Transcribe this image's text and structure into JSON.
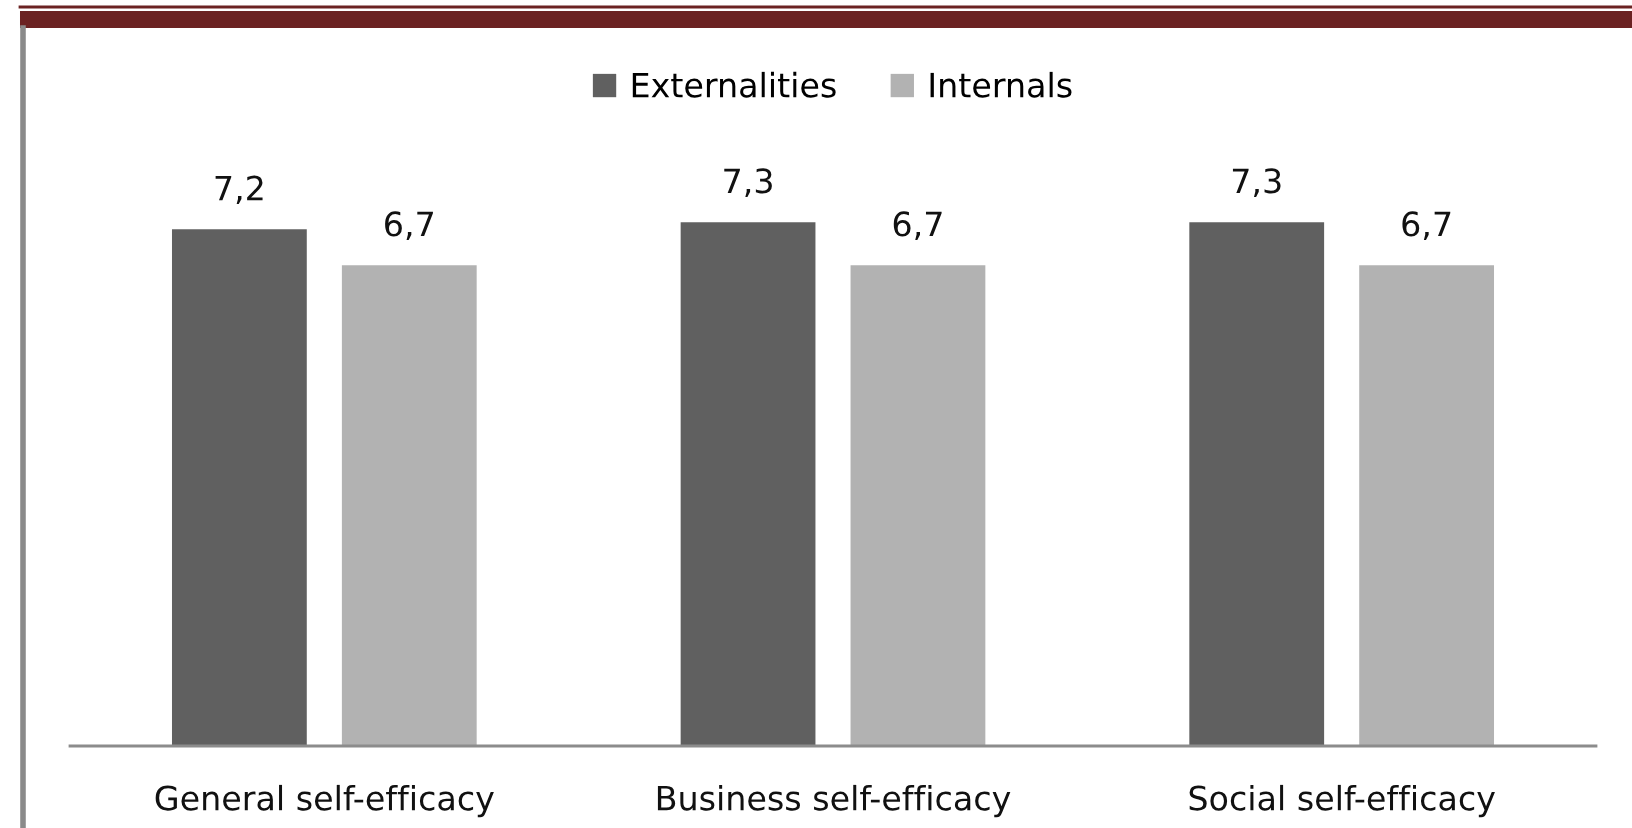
{
  "chart_data": {
    "type": "bar",
    "categories": [
      "General self-efficacy",
      "Business self-efficacy",
      "Social self-efficacy"
    ],
    "series": [
      {
        "name": "Externalities",
        "color": "#606060",
        "values": [
          7.2,
          7.3,
          7.3
        ],
        "value_labels": [
          "7,2",
          "7,3",
          "7,3"
        ]
      },
      {
        "name": "Internals",
        "color": "#b2b2b2",
        "values": [
          6.7,
          6.7,
          6.7
        ],
        "value_labels": [
          "6,7",
          "6,7",
          "6,7"
        ]
      }
    ],
    "tick_labels": "x",
    "grid": false,
    "legend": "top"
  }
}
